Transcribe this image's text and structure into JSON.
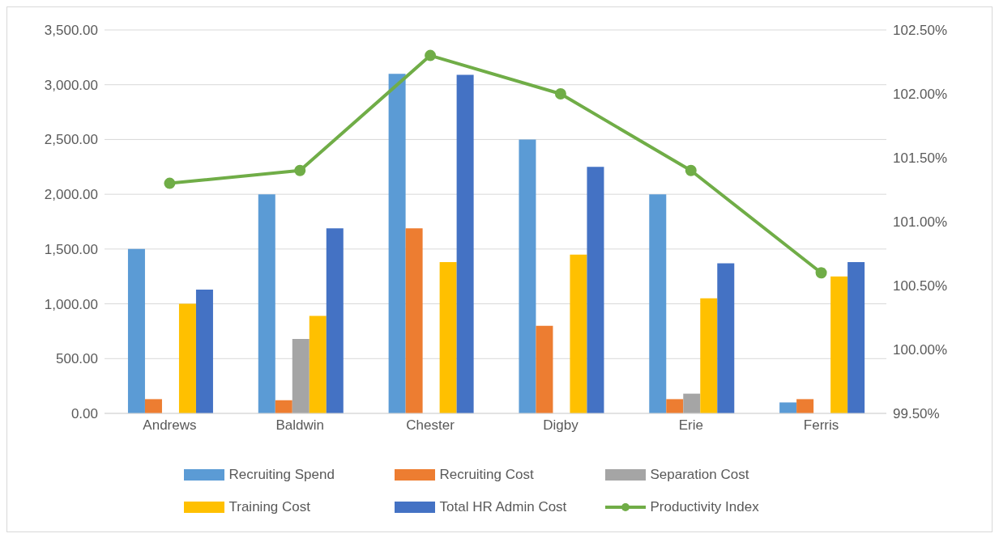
{
  "chart_data": {
    "type": "bar",
    "categories": [
      "Andrews",
      "Baldwin",
      "Chester",
      "Digby",
      "Erie",
      "Ferris"
    ],
    "series": [
      {
        "name": "Recruiting Spend",
        "color": "#5b9bd5",
        "values": [
          1500,
          2000,
          3100,
          2500,
          2000,
          100
        ]
      },
      {
        "name": "Recruiting Cost",
        "color": "#ed7d31",
        "values": [
          130,
          120,
          1690,
          800,
          130,
          130
        ]
      },
      {
        "name": "Separation Cost",
        "color": "#a5a5a5",
        "values": [
          0,
          680,
          0,
          0,
          180,
          0
        ]
      },
      {
        "name": "Training Cost",
        "color": "#ffc000",
        "values": [
          1000,
          890,
          1380,
          1450,
          1050,
          1250
        ]
      },
      {
        "name": "Total HR Admin Cost",
        "color": "#4472c4",
        "values": [
          1130,
          1690,
          3090,
          2250,
          1370,
          1380
        ]
      },
      {
        "name": "Productivity Index",
        "type": "line",
        "axis": "y2",
        "color": "#70ad47",
        "values": [
          101.3,
          101.4,
          102.3,
          102.0,
          101.4,
          100.6
        ]
      }
    ],
    "ylim": [
      0,
      3500
    ],
    "yticks": [
      {
        "value": 0,
        "label": "0.00"
      },
      {
        "value": 500,
        "label": "500.00"
      },
      {
        "value": 1000,
        "label": "1,000.00"
      },
      {
        "value": 1500,
        "label": "1,500.00"
      },
      {
        "value": 2000,
        "label": "2,000.00"
      },
      {
        "value": 2500,
        "label": "2,500.00"
      },
      {
        "value": 3000,
        "label": "3,000.00"
      },
      {
        "value": 3500,
        "label": "3,500.00"
      }
    ],
    "y2lim": [
      99.5,
      102.5
    ],
    "y2ticks": [
      {
        "value": 99.5,
        "label": "99.50%"
      },
      {
        "value": 100,
        "label": "100.00%"
      },
      {
        "value": 100.5,
        "label": "100.50%"
      },
      {
        "value": 101,
        "label": "101.00%"
      },
      {
        "value": 101.5,
        "label": "101.50%"
      },
      {
        "value": 102,
        "label": "102.00%"
      },
      {
        "value": 102.5,
        "label": "102.50%"
      }
    ],
    "grid": "y",
    "legend": "bottom",
    "marker": "circle"
  }
}
